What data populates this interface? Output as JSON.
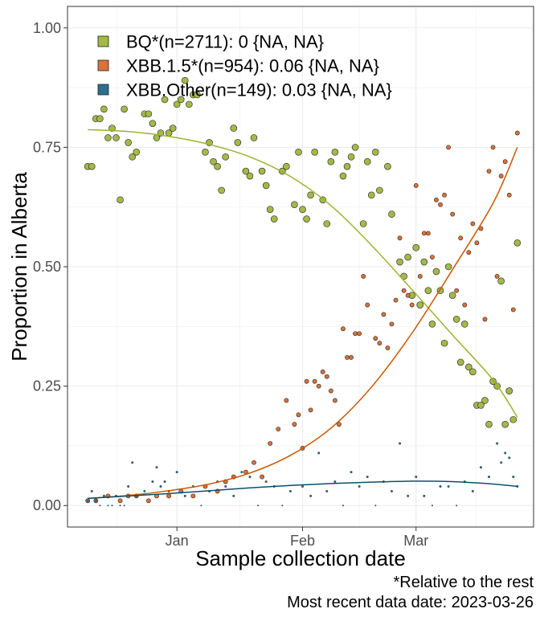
{
  "chart_data": {
    "type": "scatter",
    "ylabel": "Proportion in Alberta",
    "xlabel": "Sample collection date",
    "x_type": "date",
    "xlim": [
      "2022-12-05",
      "2023-03-30"
    ],
    "ylim": [
      -0.045,
      1.045
    ],
    "y_ticks": [
      0.0,
      0.25,
      0.5,
      0.75,
      1.0
    ],
    "y_tick_labels": [
      "0.00",
      "0.25",
      "0.50",
      "0.75",
      "1.00"
    ],
    "x_ticks": [
      "2023-01-01",
      "2023-02-01",
      "2023-03-01"
    ],
    "x_tick_labels": [
      "Jan",
      "Feb",
      "Mar"
    ],
    "grid": true,
    "legend_position": "top-left",
    "legend": [
      {
        "label": "BQ*(n=2711): 0 {NA, NA}",
        "color": "#a3b948"
      },
      {
        "label": "XBB.1.5*(n=954): 0.06 {NA, NA}",
        "color": "#d9733a"
      },
      {
        "label": "XBB.Other(n=149): 0.03 {NA, NA}",
        "color": "#2e6e8e"
      }
    ],
    "series": [
      {
        "name": "BQ*",
        "color": "#a3b948",
        "line_color": "#9ab52c",
        "points": [
          [
            "2022-12-10",
            0.71
          ],
          [
            "2022-12-11",
            0.71
          ],
          [
            "2022-12-12",
            0.81
          ],
          [
            "2022-12-13",
            0.81
          ],
          [
            "2022-12-14",
            0.83
          ],
          [
            "2022-12-15",
            0.77
          ],
          [
            "2022-12-16",
            0.79
          ],
          [
            "2022-12-17",
            0.77
          ],
          [
            "2022-12-18",
            0.64
          ],
          [
            "2022-12-19",
            0.83
          ],
          [
            "2022-12-20",
            0.76
          ],
          [
            "2022-12-21",
            0.73
          ],
          [
            "2022-12-22",
            0.74
          ],
          [
            "2022-12-24",
            0.82
          ],
          [
            "2022-12-25",
            0.82
          ],
          [
            "2022-12-26",
            0.8
          ],
          [
            "2022-12-27",
            0.77
          ],
          [
            "2022-12-28",
            0.78
          ],
          [
            "2022-12-29",
            0.85
          ],
          [
            "2022-12-30",
            0.78
          ],
          [
            "2022-12-31",
            0.79
          ],
          [
            "2023-01-01",
            0.84
          ],
          [
            "2023-01-02",
            0.85
          ],
          [
            "2023-01-03",
            0.89
          ],
          [
            "2023-01-04",
            0.84
          ],
          [
            "2023-01-05",
            0.86
          ],
          [
            "2023-01-06",
            0.86
          ],
          [
            "2023-01-08",
            0.74
          ],
          [
            "2023-01-09",
            0.76
          ],
          [
            "2023-01-10",
            0.72
          ],
          [
            "2023-01-11",
            0.71
          ],
          [
            "2023-01-12",
            0.66
          ],
          [
            "2023-01-13",
            0.73
          ],
          [
            "2023-01-15",
            0.79
          ],
          [
            "2023-01-16",
            0.76
          ],
          [
            "2023-01-18",
            0.7
          ],
          [
            "2023-01-19",
            0.69
          ],
          [
            "2023-01-20",
            0.77
          ],
          [
            "2023-01-22",
            0.7
          ],
          [
            "2023-01-23",
            0.67
          ],
          [
            "2023-01-24",
            0.62
          ],
          [
            "2023-01-25",
            0.6
          ],
          [
            "2023-01-27",
            0.7
          ],
          [
            "2023-01-28",
            0.71
          ],
          [
            "2023-01-30",
            0.63
          ],
          [
            "2023-01-31",
            0.74
          ],
          [
            "2023-02-01",
            0.62
          ],
          [
            "2023-02-02",
            0.6
          ],
          [
            "2023-02-03",
            0.65
          ],
          [
            "2023-02-04",
            0.74
          ],
          [
            "2023-02-06",
            0.64
          ],
          [
            "2023-02-07",
            0.59
          ],
          [
            "2023-02-08",
            0.72
          ],
          [
            "2023-02-09",
            0.74
          ],
          [
            "2023-02-11",
            0.69
          ],
          [
            "2023-02-12",
            0.71
          ],
          [
            "2023-02-13",
            0.73
          ],
          [
            "2023-02-14",
            0.75
          ],
          [
            "2023-02-16",
            0.59
          ],
          [
            "2023-02-17",
            0.72
          ],
          [
            "2023-02-18",
            0.65
          ],
          [
            "2023-02-19",
            0.74
          ],
          [
            "2023-02-20",
            0.66
          ],
          [
            "2023-02-22",
            0.71
          ],
          [
            "2023-02-23",
            0.61
          ],
          [
            "2023-02-25",
            0.51
          ],
          [
            "2023-02-26",
            0.48
          ],
          [
            "2023-02-27",
            0.52
          ],
          [
            "2023-02-28",
            0.44
          ],
          [
            "2023-03-01",
            0.54
          ],
          [
            "2023-03-02",
            0.42
          ],
          [
            "2023-03-03",
            0.51
          ],
          [
            "2023-03-04",
            0.45
          ],
          [
            "2023-03-05",
            0.38
          ],
          [
            "2023-03-06",
            0.49
          ],
          [
            "2023-03-07",
            0.45
          ],
          [
            "2023-03-08",
            0.34
          ],
          [
            "2023-03-09",
            0.5
          ],
          [
            "2023-03-10",
            0.44
          ],
          [
            "2023-03-11",
            0.39
          ],
          [
            "2023-03-12",
            0.3
          ],
          [
            "2023-03-13",
            0.38
          ],
          [
            "2023-03-14",
            0.29
          ],
          [
            "2023-03-15",
            0.28
          ],
          [
            "2023-03-16",
            0.21
          ],
          [
            "2023-03-17",
            0.21
          ],
          [
            "2023-03-18",
            0.22
          ],
          [
            "2023-03-19",
            0.17
          ],
          [
            "2023-03-20",
            0.26
          ],
          [
            "2023-03-21",
            0.25
          ],
          [
            "2023-03-22",
            0.47
          ],
          [
            "2023-03-23",
            0.17
          ],
          [
            "2023-03-24",
            0.24
          ],
          [
            "2023-03-25",
            0.18
          ],
          [
            "2023-03-26",
            0.55
          ]
        ],
        "fit": [
          [
            "2022-12-10",
            0.787
          ],
          [
            "2022-12-20",
            0.783
          ],
          [
            "2022-12-30",
            0.773
          ],
          [
            "2023-01-09",
            0.756
          ],
          [
            "2023-01-19",
            0.73
          ],
          [
            "2023-01-29",
            0.689
          ],
          [
            "2023-02-08",
            0.628
          ],
          [
            "2023-02-18",
            0.545
          ],
          [
            "2023-02-28",
            0.452
          ],
          [
            "2023-03-10",
            0.357
          ],
          [
            "2023-03-20",
            0.263
          ],
          [
            "2023-03-26",
            0.185
          ]
        ]
      },
      {
        "name": "XBB.1.5*",
        "color": "#d9733a",
        "line_color": "#cc5500",
        "points": [
          [
            "2022-12-10",
            0.01
          ],
          [
            "2022-12-12",
            0.01
          ],
          [
            "2022-12-15",
            0.02
          ],
          [
            "2022-12-18",
            0.01
          ],
          [
            "2022-12-20",
            0.02
          ],
          [
            "2022-12-22",
            0.02
          ],
          [
            "2022-12-25",
            0.01
          ],
          [
            "2022-12-27",
            0.02
          ],
          [
            "2022-12-30",
            0.02
          ],
          [
            "2023-01-02",
            0.03
          ],
          [
            "2023-01-05",
            0.02
          ],
          [
            "2023-01-08",
            0.04
          ],
          [
            "2023-01-11",
            0.03
          ],
          [
            "2023-01-13",
            0.05
          ],
          [
            "2023-01-15",
            0.06
          ],
          [
            "2023-01-18",
            0.07
          ],
          [
            "2023-01-20",
            0.09
          ],
          [
            "2023-01-22",
            0.06
          ],
          [
            "2023-01-24",
            0.13
          ],
          [
            "2023-01-26",
            0.16
          ],
          [
            "2023-01-28",
            0.22
          ],
          [
            "2023-01-30",
            0.17
          ],
          [
            "2023-01-31",
            0.19
          ],
          [
            "2023-02-01",
            0.12
          ],
          [
            "2023-02-02",
            0.26
          ],
          [
            "2023-02-03",
            0.2
          ],
          [
            "2023-02-04",
            0.26
          ],
          [
            "2023-02-05",
            0.25
          ],
          [
            "2023-02-06",
            0.28
          ],
          [
            "2023-02-07",
            0.27
          ],
          [
            "2023-02-08",
            0.24
          ],
          [
            "2023-02-09",
            0.22
          ],
          [
            "2023-02-10",
            0.17
          ],
          [
            "2023-02-11",
            0.37
          ],
          [
            "2023-02-12",
            0.31
          ],
          [
            "2023-02-13",
            0.31
          ],
          [
            "2023-02-14",
            0.36
          ],
          [
            "2023-02-15",
            0.36
          ],
          [
            "2023-02-16",
            0.48
          ],
          [
            "2023-02-17",
            0.42
          ],
          [
            "2023-02-19",
            0.35
          ],
          [
            "2023-02-20",
            0.34
          ],
          [
            "2023-02-21",
            0.4
          ],
          [
            "2023-02-22",
            0.33
          ],
          [
            "2023-02-23",
            0.38
          ],
          [
            "2023-02-24",
            0.43
          ],
          [
            "2023-02-25",
            0.56
          ],
          [
            "2023-02-26",
            0.45
          ],
          [
            "2023-02-27",
            0.44
          ],
          [
            "2023-02-28",
            0.42
          ],
          [
            "2023-03-01",
            0.67
          ],
          [
            "2023-03-02",
            0.48
          ],
          [
            "2023-03-03",
            0.57
          ],
          [
            "2023-03-04",
            0.57
          ],
          [
            "2023-03-05",
            0.52
          ],
          [
            "2023-03-06",
            0.64
          ],
          [
            "2023-03-07",
            0.63
          ],
          [
            "2023-03-08",
            0.65
          ],
          [
            "2023-03-09",
            0.75
          ],
          [
            "2023-03-10",
            0.61
          ],
          [
            "2023-03-11",
            0.45
          ],
          [
            "2023-03-12",
            0.56
          ],
          [
            "2023-03-13",
            0.42
          ],
          [
            "2023-03-14",
            0.53
          ],
          [
            "2023-03-15",
            0.59
          ],
          [
            "2023-03-16",
            0.55
          ],
          [
            "2023-03-17",
            0.58
          ],
          [
            "2023-03-18",
            0.39
          ],
          [
            "2023-03-19",
            0.7
          ],
          [
            "2023-03-20",
            0.75
          ],
          [
            "2023-03-21",
            0.48
          ],
          [
            "2023-03-22",
            0.69
          ],
          [
            "2023-03-23",
            0.72
          ],
          [
            "2023-03-24",
            0.65
          ],
          [
            "2023-03-25",
            0.41
          ],
          [
            "2023-03-26",
            0.78
          ]
        ],
        "fit": [
          [
            "2022-12-10",
            0.015
          ],
          [
            "2022-12-20",
            0.021
          ],
          [
            "2022-12-30",
            0.031
          ],
          [
            "2023-01-09",
            0.045
          ],
          [
            "2023-01-19",
            0.068
          ],
          [
            "2023-01-29",
            0.105
          ],
          [
            "2023-02-08",
            0.162
          ],
          [
            "2023-02-18",
            0.248
          ],
          [
            "2023-02-28",
            0.361
          ],
          [
            "2023-03-10",
            0.494
          ],
          [
            "2023-03-20",
            0.633
          ],
          [
            "2023-03-26",
            0.75
          ]
        ]
      },
      {
        "name": "XBB.Other",
        "color": "#2e6e8e",
        "line_color": "#0b4f6c",
        "points": [
          [
            "2022-12-10",
            0.01
          ],
          [
            "2022-12-11",
            0.03
          ],
          [
            "2022-12-12",
            0.01
          ],
          [
            "2022-12-13",
            0.0
          ],
          [
            "2022-12-14",
            0.02
          ],
          [
            "2022-12-15",
            0.0
          ],
          [
            "2022-12-16",
            0.0
          ],
          [
            "2022-12-17",
            0.02
          ],
          [
            "2022-12-18",
            0.0
          ],
          [
            "2022-12-19",
            0.0
          ],
          [
            "2022-12-20",
            0.04
          ],
          [
            "2022-12-21",
            0.09
          ],
          [
            "2022-12-22",
            0.02
          ],
          [
            "2022-12-24",
            0.03
          ],
          [
            "2022-12-26",
            0.05
          ],
          [
            "2022-12-27",
            0.08
          ],
          [
            "2022-12-28",
            0.04
          ],
          [
            "2022-12-29",
            0.05
          ],
          [
            "2022-12-30",
            0.03
          ],
          [
            "2023-01-01",
            0.07
          ],
          [
            "2023-01-03",
            0.02
          ],
          [
            "2023-01-05",
            0.04
          ],
          [
            "2023-01-07",
            0.0
          ],
          [
            "2023-01-09",
            0.03
          ],
          [
            "2023-01-11",
            0.05
          ],
          [
            "2023-01-13",
            0.04
          ],
          [
            "2023-01-15",
            0.02
          ],
          [
            "2023-01-17",
            0.07
          ],
          [
            "2023-01-19",
            0.06
          ],
          [
            "2023-01-21",
            0.0
          ],
          [
            "2023-01-23",
            0.05
          ],
          [
            "2023-01-25",
            0.04
          ],
          [
            "2023-01-27",
            0.0
          ],
          [
            "2023-01-29",
            0.03
          ],
          [
            "2023-02-01",
            0.04
          ],
          [
            "2023-02-03",
            0.02
          ],
          [
            "2023-02-05",
            0.11
          ],
          [
            "2023-02-07",
            0.03
          ],
          [
            "2023-02-09",
            0.05
          ],
          [
            "2023-02-11",
            0.0
          ],
          [
            "2023-02-13",
            0.07
          ],
          [
            "2023-02-15",
            0.04
          ],
          [
            "2023-02-17",
            0.06
          ],
          [
            "2023-02-19",
            0.0
          ],
          [
            "2023-02-21",
            0.05
          ],
          [
            "2023-02-23",
            0.03
          ],
          [
            "2023-02-25",
            0.13
          ],
          [
            "2023-02-27",
            0.02
          ],
          [
            "2023-03-01",
            0.06
          ],
          [
            "2023-03-03",
            0.02
          ],
          [
            "2023-03-05",
            0.0
          ],
          [
            "2023-03-07",
            0.04
          ],
          [
            "2023-03-09",
            0.04
          ],
          [
            "2023-03-11",
            0.0
          ],
          [
            "2023-03-13",
            0.05
          ],
          [
            "2023-03-15",
            0.03
          ],
          [
            "2023-03-17",
            0.08
          ],
          [
            "2023-03-19",
            0.06
          ],
          [
            "2023-03-21",
            0.13
          ],
          [
            "2023-03-22",
            0.09
          ],
          [
            "2023-03-23",
            0.11
          ],
          [
            "2023-03-24",
            0.1
          ],
          [
            "2023-03-25",
            0.06
          ],
          [
            "2023-03-26",
            0.04
          ]
        ],
        "fit": [
          [
            "2022-12-10",
            0.015
          ],
          [
            "2022-12-20",
            0.02
          ],
          [
            "2022-12-30",
            0.025
          ],
          [
            "2023-01-09",
            0.031
          ],
          [
            "2023-01-19",
            0.037
          ],
          [
            "2023-01-29",
            0.042
          ],
          [
            "2023-02-08",
            0.046
          ],
          [
            "2023-02-18",
            0.049
          ],
          [
            "2023-02-28",
            0.051
          ],
          [
            "2023-03-10",
            0.05
          ],
          [
            "2023-03-20",
            0.045
          ],
          [
            "2023-03-26",
            0.04
          ]
        ]
      }
    ]
  },
  "caption": {
    "line1": "*Relative to the rest",
    "line2": "Most recent data date: 2023-03-26"
  }
}
